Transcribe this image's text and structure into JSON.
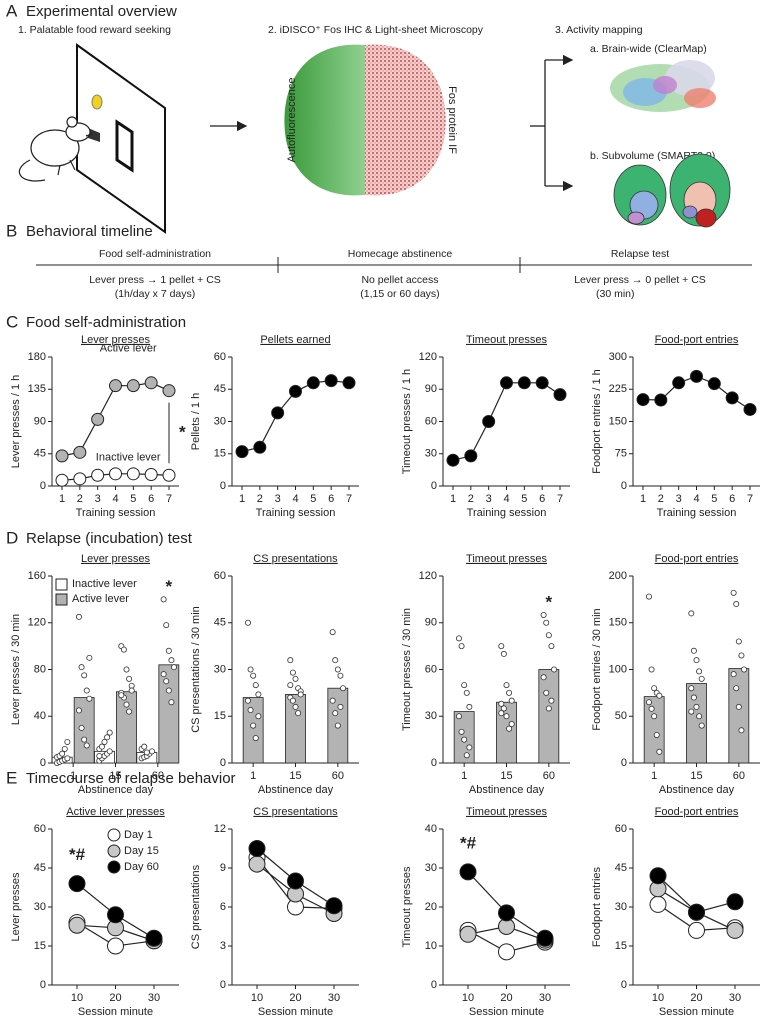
{
  "panel_a": {
    "letter": "A",
    "title": "Experimental overview",
    "step1": "1. Palatable food reward seeking",
    "step2": "2. iDISCO⁺ Fos IHC & Light-sheet Microscopy",
    "step3": "3. Activity mapping",
    "label_left": "Autofluorescence",
    "label_right": "Fos protein IF",
    "map_a": "a. Brain-wide (ClearMap)",
    "map_b": "b. Subvolume (SMART2.0)"
  },
  "panel_b": {
    "letter": "B",
    "title": "Behavioral timeline",
    "phases": [
      {
        "name": "Food self-administration",
        "lines": [
          "Lever press → 1 pellet + CS",
          "(1h/day x 7 days)"
        ]
      },
      {
        "name": "Homecage abstinence",
        "lines": [
          "No pellet access",
          "(1,15 or 60 days)"
        ]
      },
      {
        "name": "Relapse test",
        "lines": [
          "Lever press → 0 pellet + CS",
          "(30 min)"
        ]
      }
    ]
  },
  "panel_c": {
    "letter": "C",
    "title": "Food self-administration"
  },
  "panel_d": {
    "letter": "D",
    "title": "Relapse (incubation) test"
  },
  "panel_e": {
    "letter": "E",
    "title": "Timecourse of relapse behavior"
  },
  "chart_data": [
    {
      "type": "line",
      "title": "Lever presses",
      "xlabel": "Training session",
      "ylabel": "Lever presses / 1 h",
      "categories": [
        "1",
        "2",
        "3",
        "4",
        "5",
        "6",
        "7"
      ],
      "ylim": [
        0,
        180
      ],
      "yticks": [
        0,
        45,
        90,
        135,
        180
      ],
      "series": [
        {
          "name": "Active lever",
          "color": "#b3b3b3",
          "values": [
            42,
            47,
            93,
            140,
            140,
            144,
            133
          ]
        },
        {
          "name": "Inactive lever",
          "color": "#ffffff",
          "values": [
            8,
            10,
            15,
            17,
            17,
            16,
            15
          ]
        }
      ],
      "annotations": [
        "*"
      ]
    },
    {
      "type": "line",
      "title": "Pellets earned",
      "xlabel": "Training session",
      "ylabel": "Pellets / 1 h",
      "categories": [
        "1",
        "2",
        "3",
        "4",
        "5",
        "6",
        "7"
      ],
      "ylim": [
        0,
        60
      ],
      "yticks": [
        0,
        15,
        30,
        45,
        60
      ],
      "series": [
        {
          "color": "#000000",
          "values": [
            16,
            18,
            34,
            44,
            48,
            49,
            48
          ]
        }
      ]
    },
    {
      "type": "line",
      "title": "Timeout presses",
      "xlabel": "Training session",
      "ylabel": "Timeout presses / 1 h",
      "categories": [
        "1",
        "2",
        "3",
        "4",
        "5",
        "6",
        "7"
      ],
      "ylim": [
        0,
        120
      ],
      "yticks": [
        0,
        30,
        60,
        90,
        120
      ],
      "series": [
        {
          "color": "#000000",
          "values": [
            24,
            28,
            60,
            96,
            96,
            96,
            85
          ]
        }
      ]
    },
    {
      "type": "line",
      "title": "Food-port entries",
      "xlabel": "Training session",
      "ylabel": "Foodport entries / 1 h",
      "categories": [
        "1",
        "2",
        "3",
        "4",
        "5",
        "6",
        "7"
      ],
      "ylim": [
        0,
        300
      ],
      "yticks": [
        0,
        75,
        150,
        225,
        300
      ],
      "series": [
        {
          "color": "#000000",
          "values": [
            201,
            200,
            240,
            255,
            238,
            205,
            178
          ]
        }
      ]
    },
    {
      "type": "bar",
      "title": "Lever presses",
      "xlabel": "Abstinence day",
      "ylabel": "Lever presses / 30 min",
      "categories": [
        "1",
        "15",
        "60"
      ],
      "ylim": [
        0,
        160
      ],
      "yticks": [
        0,
        40,
        80,
        120,
        160
      ],
      "legend": "upper left",
      "series": [
        {
          "name": "Inactive lever",
          "color": "#ffffff",
          "values": [
            5,
            10,
            9
          ],
          "points": [
            [
              0,
              1,
              2,
              3,
              4,
              5,
              6,
              8,
              12,
              18
            ],
            [
              2,
              4,
              6,
              8,
              10,
              12,
              14,
              18,
              22,
              26,
              6
            ],
            [
              4,
              5,
              6,
              8,
              10,
              12,
              14,
              9
            ]
          ]
        },
        {
          "name": "Active lever",
          "color": "#b3b3b3",
          "values": [
            56,
            61,
            84
          ],
          "points": [
            [
              125,
              82,
              75,
              62,
              55,
              45,
              30,
              20,
              15,
              90
            ],
            [
              100,
              97,
              80,
              72,
              66,
              60,
              56,
              50,
              44,
              62,
              58
            ],
            [
              140,
              118,
              96,
              88,
              82,
              76,
              70,
              62,
              52
            ]
          ]
        }
      ],
      "annotations": [
        "*"
      ]
    },
    {
      "type": "bar",
      "title": "CS presentations",
      "xlabel": "Abstinence day",
      "ylabel": "CS presentations / 30 min",
      "categories": [
        "1",
        "15",
        "60"
      ],
      "ylim": [
        0,
        60
      ],
      "yticks": [
        0,
        15,
        30,
        45,
        60
      ],
      "series": [
        {
          "color": "#b3b3b3",
          "values": [
            21,
            22,
            24
          ],
          "points": [
            [
              45,
              30,
              28,
              25,
              22,
              20,
              17,
              12,
              8,
              15
            ],
            [
              33,
              29,
              27,
              24,
              23,
              21,
              20,
              18,
              16,
              22,
              25
            ],
            [
              42,
              33,
              30,
              28,
              24,
              20,
              16,
              12,
              18
            ]
          ]
        }
      ]
    },
    {
      "type": "bar",
      "title": "Timeout presses",
      "xlabel": "Abstinence day",
      "ylabel": "Timeout presses / 30 min",
      "categories": [
        "1",
        "15",
        "60"
      ],
      "ylim": [
        0,
        120
      ],
      "yticks": [
        0,
        30,
        60,
        90,
        120
      ],
      "series": [
        {
          "color": "#b3b3b3",
          "values": [
            33,
            39,
            60
          ],
          "points": [
            [
              80,
              75,
              50,
              45,
              36,
              30,
              20,
              15,
              5,
              10
            ],
            [
              75,
              70,
              50,
              45,
              40,
              38,
              35,
              30,
              22,
              25,
              32
            ],
            [
              95,
              90,
              82,
              75,
              60,
              55,
              45,
              35,
              40
            ]
          ]
        }
      ],
      "annotations": [
        "*"
      ]
    },
    {
      "type": "bar",
      "title": "Food-port entries",
      "xlabel": "Abstinence day",
      "ylabel": "Foodport entries / 30 min",
      "categories": [
        "1",
        "15",
        "60"
      ],
      "ylim": [
        0,
        200
      ],
      "yticks": [
        0,
        50,
        100,
        150,
        200
      ],
      "series": [
        {
          "color": "#b3b3b3",
          "values": [
            71,
            85,
            101
          ],
          "points": [
            [
              178,
              100,
              80,
              75,
              72,
              65,
              58,
              50,
              30,
              12
            ],
            [
              160,
              120,
              110,
              98,
              90,
              80,
              70,
              60,
              50,
              40,
              55
            ],
            [
              182,
              170,
              130,
              115,
              100,
              95,
              80,
              60,
              35
            ]
          ]
        }
      ]
    },
    {
      "type": "line",
      "title": "Active lever presses",
      "xlabel": "Session minute",
      "ylabel": "Lever presses",
      "categories": [
        "10",
        "20",
        "30"
      ],
      "ylim": [
        0,
        60
      ],
      "yticks": [
        0,
        15,
        30,
        45,
        60
      ],
      "legend": "upper right",
      "series": [
        {
          "name": "Day 1",
          "color": "#ffffff",
          "values": [
            24,
            15,
            17
          ]
        },
        {
          "name": "Day 15",
          "color": "#c8c8c8",
          "values": [
            23,
            22,
            17
          ]
        },
        {
          "name": "Day 60",
          "color": "#000000",
          "values": [
            39,
            27,
            18
          ]
        }
      ],
      "annotations": [
        "*#"
      ]
    },
    {
      "type": "line",
      "title": "CS presentations",
      "xlabel": "Session minute",
      "ylabel": "CS presentations",
      "categories": [
        "10",
        "20",
        "30"
      ],
      "ylim": [
        0,
        12
      ],
      "yticks": [
        0,
        3,
        6,
        9,
        12
      ],
      "series": [
        {
          "color": "#ffffff",
          "values": [
            9.8,
            6.0,
            5.9
          ]
        },
        {
          "color": "#c8c8c8",
          "values": [
            9.3,
            7.0,
            5.5
          ]
        },
        {
          "color": "#000000",
          "values": [
            10.5,
            8.0,
            6.1
          ]
        }
      ]
    },
    {
      "type": "line",
      "title": "Timeout presses",
      "xlabel": "Session minute",
      "ylabel": "Timeout presses",
      "categories": [
        "10",
        "20",
        "30"
      ],
      "ylim": [
        0,
        40
      ],
      "yticks": [
        0,
        10,
        20,
        30,
        40
      ],
      "series": [
        {
          "color": "#ffffff",
          "values": [
            14,
            8.5,
            11
          ]
        },
        {
          "color": "#c8c8c8",
          "values": [
            13,
            15,
            11.5
          ]
        },
        {
          "color": "#000000",
          "values": [
            29,
            18.5,
            12
          ]
        }
      ],
      "annotations": [
        "*#"
      ]
    },
    {
      "type": "line",
      "title": "Food-port entries",
      "xlabel": "Session minute",
      "ylabel": "Foodport entries",
      "categories": [
        "10",
        "20",
        "30"
      ],
      "ylim": [
        0,
        60
      ],
      "yticks": [
        0,
        15,
        30,
        45,
        60
      ],
      "series": [
        {
          "color": "#ffffff",
          "values": [
            31,
            21,
            22
          ]
        },
        {
          "color": "#c8c8c8",
          "values": [
            37,
            28,
            21
          ]
        },
        {
          "color": "#000000",
          "values": [
            42,
            28,
            32
          ]
        }
      ]
    }
  ]
}
